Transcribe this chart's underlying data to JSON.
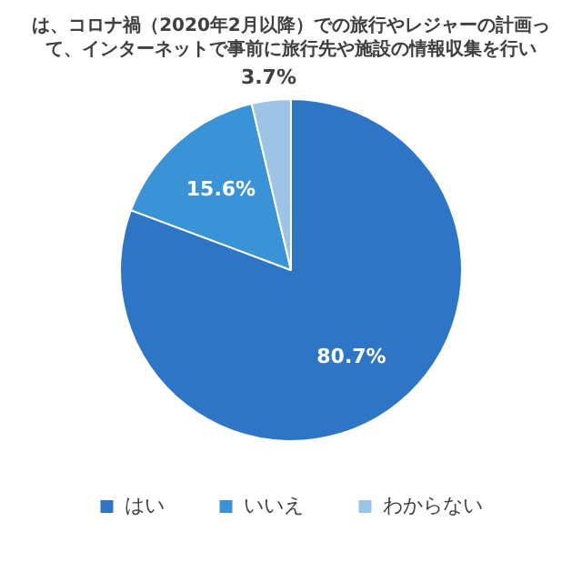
{
  "chart_data": {
    "type": "pie",
    "title": "は、コロナ禍（2020年2月以降）での旅行やレジャーの計画って、インターネットで事前に旅行先や施設の情報収集を行い",
    "categories": [
      "はい",
      "いいえ",
      "わからない"
    ],
    "values": [
      80.7,
      15.6,
      3.7
    ],
    "value_labels": [
      "80.7%",
      "15.6%",
      "3.7%"
    ],
    "colors": [
      "#2e75c6",
      "#3a93d6",
      "#9dc3e6"
    ],
    "legend": "bottom"
  }
}
